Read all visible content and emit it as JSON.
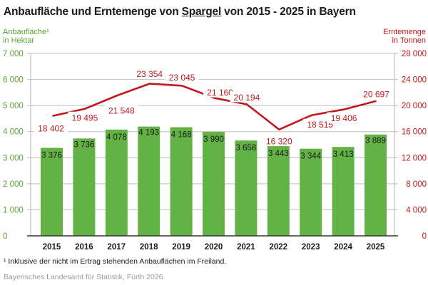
{
  "chart_data": {
    "type": "bar+line",
    "title_parts": [
      "Anbaufläche und Erntemenge von ",
      "Spargel",
      " von 2015 - 2025 in Bayern"
    ],
    "title": "Anbaufläche und Erntemenge von Spargel von 2015 - 2025 in Bayern",
    "categories": [
      "2015",
      "2016",
      "2017",
      "2018",
      "2019",
      "2020",
      "2021",
      "2022",
      "2023",
      "2024",
      "2025"
    ],
    "series": [
      {
        "name": "Anbaufläche in Hektar",
        "type": "bar",
        "axis": "left",
        "color": "#62b245",
        "values": [
          3376,
          3736,
          4078,
          4193,
          4168,
          3990,
          3658,
          3443,
          3344,
          3413,
          3889
        ],
        "labels": [
          "3 376",
          "3 736",
          "4 078",
          "4 193",
          "4 168",
          "3 990",
          "3 658",
          "3 443",
          "3 344",
          "3 413",
          "3 889"
        ]
      },
      {
        "name": "Erntemenge in Tonnen",
        "type": "line",
        "axis": "right",
        "color": "#c0181e",
        "values": [
          18402,
          19495,
          21548,
          23354,
          23045,
          21160,
          20194,
          16320,
          18515,
          19406,
          20697
        ],
        "labels": [
          "18 402",
          "19 495",
          "21 548",
          "23 354",
          "23 045",
          "21 160",
          "20 194",
          "16 320",
          "18 515",
          "19 406",
          "20 697"
        ]
      }
    ],
    "left_axis": {
      "title_line1": "Anbaufläche¹",
      "title_line2": "in Hektar",
      "ylim": [
        0,
        7000
      ],
      "ticks": [
        0,
        1000,
        2000,
        3000,
        4000,
        5000,
        6000,
        7000
      ],
      "tick_labels": [
        "0",
        "1 000",
        "2 000",
        "3 000",
        "4 000",
        "5 000",
        "6 000",
        "7 000"
      ],
      "color": "#5aa335"
    },
    "right_axis": {
      "title_line1": "Erntemenge",
      "title_line2": "in Tonnen",
      "ylim": [
        0,
        28000
      ],
      "ticks": [
        0,
        4000,
        8000,
        12000,
        16000,
        20000,
        24000,
        28000
      ],
      "tick_labels": [
        "0",
        "4 000",
        "8 000",
        "12 000",
        "16 000",
        "20 000",
        "24 000",
        "28 000"
      ],
      "color": "#c0181e"
    },
    "grid": true,
    "legend": "none",
    "footnote": "¹ Inklusive der nicht im Ertrag stehenden Anbauflächen im Freiland.",
    "source": "Bayerisches Landesamt für Statistik, Fürth 2026"
  }
}
